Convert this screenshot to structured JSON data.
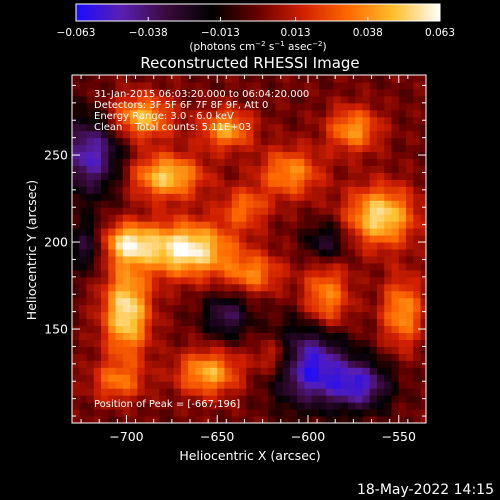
{
  "chart_data": {
    "type": "heatmap",
    "title": "Reconstructed RHESSI Image",
    "xlabel": "Heliocentric X (arcsec)",
    "ylabel": "Heliocentric Y (arcsec)",
    "xlim": [
      -730,
      -535
    ],
    "ylim": [
      96,
      296
    ],
    "xticks": [
      -700,
      -650,
      -600,
      -550
    ],
    "xtick_labels": [
      "−700",
      "−650",
      "−600",
      "−550"
    ],
    "yticks": [
      150,
      200,
      250
    ],
    "ytick_labels": [
      "150",
      "200",
      "250"
    ],
    "colorbar": {
      "range": [
        -0.063,
        0.063
      ],
      "ticks": [
        -0.063,
        -0.038,
        -0.013,
        0.013,
        0.038,
        0.063
      ],
      "tick_labels": [
        "−0.063",
        "−0.038",
        "−0.013",
        "0.013",
        "0.038",
        "0.063"
      ],
      "unit_label": "(photons cm",
      "unit_sup1": "−2",
      "unit_mid1": " s",
      "unit_sup2": "−1",
      "unit_mid2": " asec",
      "unit_sup3": "−2",
      "unit_end": ")",
      "colormap": [
        "#1a0cff",
        "#5a1fb0",
        "#3a0a3a",
        "#000000",
        "#6a0000",
        "#d22000",
        "#ff6a00",
        "#ffc030",
        "#ffffff"
      ]
    },
    "annotations": [
      "31-Jan-2015 06:03:20.000 to 06:04:20.000",
      "Detectors: 3F 5F 6F 7F 8F 9F, Att 0",
      "Energy Range: 3.0 - 6.0 keV",
      "Clean    Total counts: 5.11E+03"
    ],
    "peak_label": "Position of Peak = [-667,196]",
    "peak": [
      -667,
      196
    ],
    "sources": [
      {
        "x": -667,
        "y": 196,
        "amp": 0.063,
        "sx": 18,
        "sy": 11
      },
      {
        "x": -700,
        "y": 160,
        "amp": 0.058,
        "sx": 9,
        "sy": 18
      },
      {
        "x": -700,
        "y": 200,
        "amp": 0.045,
        "sx": 10,
        "sy": 8
      },
      {
        "x": -678,
        "y": 238,
        "amp": 0.05,
        "sx": 14,
        "sy": 9
      },
      {
        "x": -692,
        "y": 272,
        "amp": 0.046,
        "sx": 12,
        "sy": 9
      },
      {
        "x": -645,
        "y": 265,
        "amp": 0.042,
        "sx": 10,
        "sy": 8
      },
      {
        "x": -610,
        "y": 240,
        "amp": 0.038,
        "sx": 12,
        "sy": 10
      },
      {
        "x": -560,
        "y": 215,
        "amp": 0.055,
        "sx": 13,
        "sy": 12
      },
      {
        "x": -575,
        "y": 265,
        "amp": 0.04,
        "sx": 10,
        "sy": 9
      },
      {
        "x": -590,
        "y": 168,
        "amp": 0.038,
        "sx": 9,
        "sy": 14
      },
      {
        "x": -548,
        "y": 160,
        "amp": 0.04,
        "sx": 8,
        "sy": 14
      },
      {
        "x": -630,
        "y": 182,
        "amp": 0.033,
        "sx": 11,
        "sy": 8
      },
      {
        "x": -655,
        "y": 125,
        "amp": 0.045,
        "sx": 12,
        "sy": 9
      },
      {
        "x": -617,
        "y": 134,
        "amp": 0.032,
        "sx": 9,
        "sy": 8
      },
      {
        "x": -705,
        "y": 120,
        "amp": 0.03,
        "sx": 10,
        "sy": 8
      },
      {
        "x": -635,
        "y": 220,
        "amp": 0.03,
        "sx": 9,
        "sy": 8
      },
      {
        "x": -720,
        "y": 250,
        "amp": -0.05,
        "sx": 12,
        "sy": 16
      },
      {
        "x": -600,
        "y": 130,
        "amp": -0.06,
        "sx": 14,
        "sy": 16
      },
      {
        "x": -572,
        "y": 118,
        "amp": -0.05,
        "sx": 12,
        "sy": 10
      },
      {
        "x": -645,
        "y": 158,
        "amp": -0.035,
        "sx": 9,
        "sy": 9
      },
      {
        "x": -590,
        "y": 200,
        "amp": -0.03,
        "sx": 8,
        "sy": 8
      },
      {
        "x": -722,
        "y": 198,
        "amp": -0.03,
        "sx": 7,
        "sy": 10
      }
    ]
  },
  "footer": {
    "timestamp": "18-May-2022 14:15"
  }
}
